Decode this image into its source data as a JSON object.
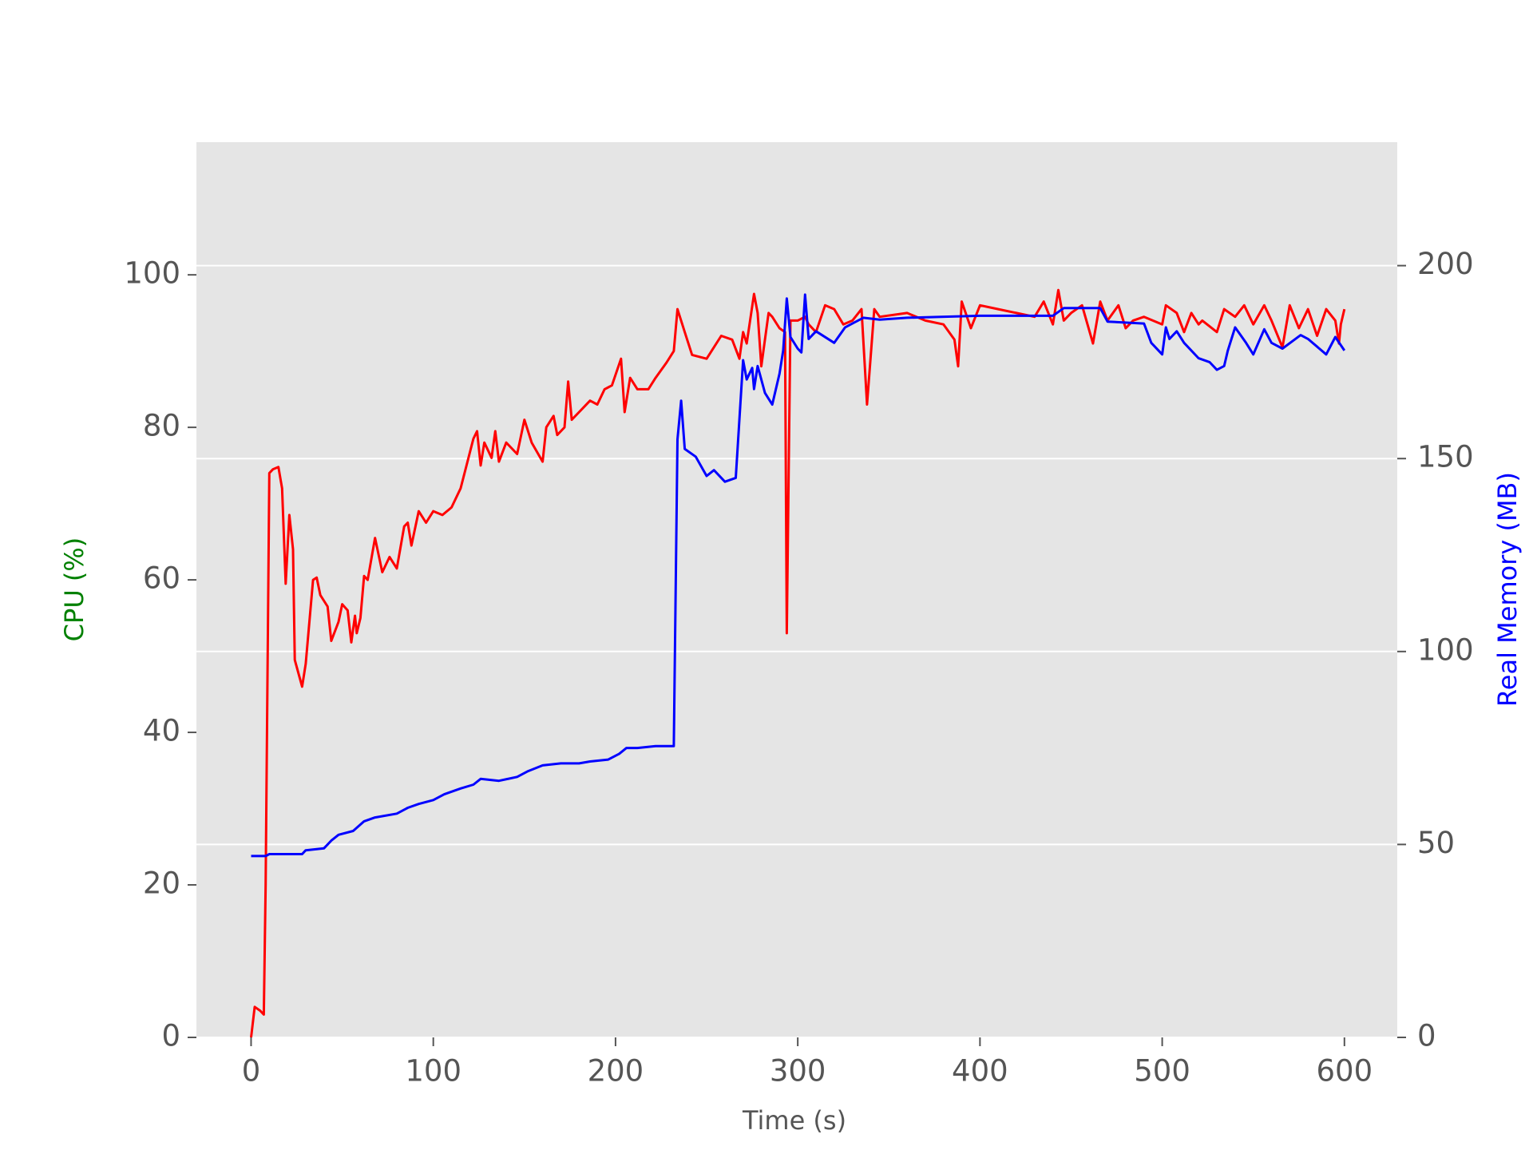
{
  "chart_data": {
    "type": "line",
    "xlabel": "Time (s)",
    "ylabel": "CPU (%)",
    "y2label": "Real Memory (MB)",
    "ylabel_color": "green",
    "y2label_color": "blue",
    "xlim": [
      -30,
      629
    ],
    "xticks": [
      0,
      100,
      200,
      300,
      400,
      500,
      600
    ],
    "ylim": [
      0,
      117.4
    ],
    "yticks": [
      0,
      20,
      40,
      60,
      80,
      100
    ],
    "y2lim": [
      0,
      232
    ],
    "y2ticks": [
      0,
      50,
      100,
      150,
      200
    ],
    "grid": "y2",
    "series": [
      {
        "color": "red",
        "x": [
          0,
          2,
          5,
          7,
          8,
          10,
          12,
          15,
          17,
          19,
          21,
          23,
          24,
          28,
          30,
          34,
          36,
          38,
          42,
          44,
          48,
          50,
          53,
          55,
          57,
          58,
          60,
          62,
          64,
          68,
          72,
          76,
          80,
          84,
          86,
          88,
          92,
          96,
          100,
          105,
          110,
          115,
          122,
          124,
          126,
          128,
          132,
          134,
          136,
          140,
          146,
          150,
          154,
          160,
          162,
          166,
          168,
          172,
          174,
          176,
          180,
          186,
          190,
          194,
          198,
          203,
          205,
          208,
          212,
          218,
          222,
          228,
          232,
          234,
          238,
          242,
          250,
          258,
          264,
          268,
          270,
          272,
          276,
          278,
          280,
          284,
          286,
          290,
          293,
          294,
          296,
          300,
          304,
          306,
          310,
          315,
          320,
          325,
          330,
          335,
          338,
          342,
          345,
          360,
          370,
          380,
          386,
          388,
          390,
          395,
          400,
          410,
          420,
          430,
          435,
          440,
          443,
          446,
          450,
          456,
          462,
          466,
          470,
          476,
          480,
          484,
          490,
          500,
          502,
          508,
          512,
          516,
          520,
          522,
          530,
          534,
          540,
          545,
          550,
          556,
          560,
          566,
          570,
          575,
          580,
          585,
          590,
          595,
          597,
          598,
          600
        ],
        "values": [
          0,
          4,
          3.5,
          3,
          20,
          74,
          74.5,
          74.8,
          72,
          59.5,
          68.5,
          64,
          49.5,
          46,
          49,
          60,
          60.3,
          58,
          56.5,
          52,
          54.5,
          56.8,
          56,
          51.8,
          55.3,
          53,
          55,
          60.5,
          60,
          65.5,
          61,
          63,
          61.5,
          67,
          67.5,
          64.5,
          69,
          67.5,
          69,
          68.5,
          69.5,
          72,
          78.5,
          79.5,
          75,
          78,
          76,
          79.5,
          75.5,
          78,
          76.5,
          81,
          78,
          75.5,
          80,
          81.5,
          79,
          80,
          86,
          81,
          82,
          83.5,
          83,
          85,
          85.5,
          89,
          82,
          86.5,
          85,
          85,
          86.5,
          88.5,
          90,
          95.5,
          92.5,
          89.5,
          89,
          92,
          91.5,
          89,
          92.5,
          91,
          97.5,
          95,
          88,
          95,
          94.5,
          93,
          92.5,
          53,
          94,
          94,
          94.5,
          93.5,
          92.5,
          96,
          95.5,
          93.5,
          94,
          95.5,
          83,
          95.5,
          94.5,
          95,
          94,
          93.5,
          91.5,
          88,
          96.5,
          93,
          96,
          95.5,
          95,
          94.5,
          96.5,
          93.5,
          98,
          94,
          95,
          96,
          91,
          96.5,
          94,
          96,
          93,
          94,
          94.5,
          93.5,
          96,
          95,
          92.5,
          95,
          93.5,
          94,
          92.5,
          95.5,
          94.5,
          96,
          93.5,
          96,
          94,
          90.5,
          96,
          93,
          95.5,
          92,
          95.5,
          94,
          91,
          93.5,
          95.5
        ]
      },
      {
        "color": "blue",
        "axis": "y2",
        "x": [
          0,
          8,
          10,
          28,
          30,
          40,
          44,
          48,
          56,
          62,
          68,
          80,
          86,
          92,
          100,
          106,
          115,
          122,
          126,
          136,
          146,
          152,
          160,
          170,
          180,
          186,
          196,
          202,
          206,
          212,
          222,
          232,
          234,
          236,
          238,
          244,
          250,
          254,
          260,
          266,
          270,
          272,
          275,
          276,
          278,
          282,
          286,
          290,
          292,
          294,
          296,
          300,
          302,
          304,
          306,
          310,
          320,
          326,
          330,
          336,
          345,
          360,
          400,
          440,
          446,
          466,
          470,
          490,
          494,
          500,
          502,
          504,
          508,
          512,
          520,
          526,
          530,
          534,
          536,
          540,
          546,
          550,
          556,
          560,
          566,
          576,
          580,
          590,
          595,
          600
        ],
        "values": [
          47,
          47,
          47.5,
          47.5,
          48.5,
          49,
          51,
          52.5,
          53.5,
          56,
          57,
          58,
          59.5,
          60.5,
          61.5,
          63,
          64.5,
          65.5,
          67,
          66.5,
          67.5,
          69,
          70.5,
          71,
          71,
          71.5,
          72,
          73.5,
          75,
          75,
          75.5,
          75.5,
          155,
          165,
          152.5,
          150.5,
          145.5,
          147,
          144,
          145,
          175.5,
          170.5,
          173.5,
          168,
          174,
          167,
          164,
          172,
          178,
          191.5,
          181.5,
          178.5,
          177.5,
          192.5,
          181,
          183,
          180,
          184,
          185,
          186.5,
          186,
          186.5,
          187,
          187,
          189,
          189,
          185.5,
          185,
          180,
          177,
          184,
          181,
          183,
          180,
          176,
          175,
          173,
          174,
          178,
          184,
          180,
          177,
          183.5,
          180,
          178.5,
          182,
          181,
          177,
          181.5,
          178
        ]
      }
    ]
  }
}
